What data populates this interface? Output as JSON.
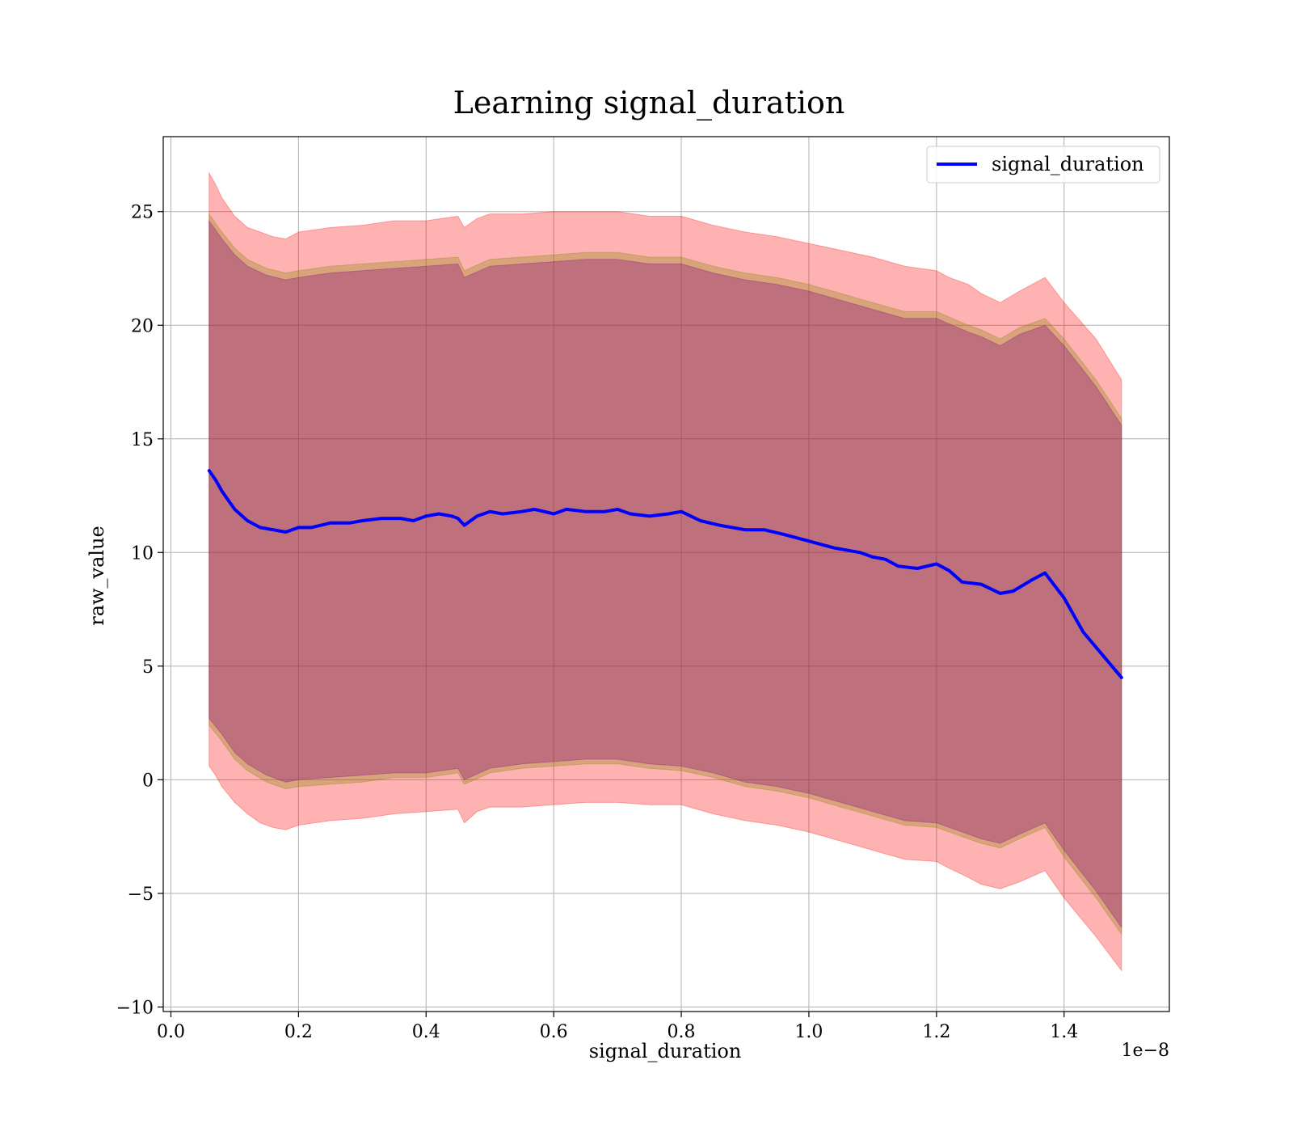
{
  "chart_data": {
    "type": "line",
    "title": "Learning signal_duration",
    "xlabel": "signal_duration",
    "ylabel": "raw_value",
    "x_offset_label": "1e−8",
    "xlim": [
      -0.012,
      1.565
    ],
    "ylim": [
      -10.2,
      28.3
    ],
    "x_ticks": [
      0.0,
      0.2,
      0.4,
      0.6,
      0.8,
      1.0,
      1.2,
      1.4
    ],
    "x_tick_labels": [
      "0.0",
      "0.2",
      "0.4",
      "0.6",
      "0.8",
      "1.0",
      "1.2",
      "1.4"
    ],
    "y_ticks": [
      -10,
      -5,
      0,
      5,
      10,
      15,
      20,
      25
    ],
    "y_tick_labels": [
      "−10",
      "−5",
      "0",
      "5",
      "10",
      "15",
      "20",
      "25"
    ],
    "grid": true,
    "legend_position": "top-right",
    "colors": {
      "line": "#0000ff",
      "outer_band": "#ff0000",
      "middle_band": "#808000",
      "inner_band": "#800080"
    },
    "series": [
      {
        "name": "signal_duration",
        "x": [
          0.06,
          0.07,
          0.08,
          0.09,
          0.1,
          0.12,
          0.14,
          0.16,
          0.18,
          0.2,
          0.22,
          0.25,
          0.28,
          0.3,
          0.33,
          0.36,
          0.38,
          0.4,
          0.42,
          0.44,
          0.45,
          0.46,
          0.48,
          0.5,
          0.52,
          0.55,
          0.57,
          0.6,
          0.62,
          0.65,
          0.68,
          0.7,
          0.72,
          0.75,
          0.78,
          0.8,
          0.83,
          0.86,
          0.9,
          0.93,
          0.96,
          1.0,
          1.04,
          1.08,
          1.1,
          1.12,
          1.14,
          1.17,
          1.2,
          1.22,
          1.24,
          1.27,
          1.3,
          1.32,
          1.35,
          1.37,
          1.4,
          1.43,
          1.46,
          1.49
        ],
        "y": [
          13.6,
          13.2,
          12.7,
          12.3,
          11.9,
          11.4,
          11.1,
          11.0,
          10.9,
          11.1,
          11.1,
          11.3,
          11.3,
          11.4,
          11.5,
          11.5,
          11.4,
          11.6,
          11.7,
          11.6,
          11.5,
          11.2,
          11.6,
          11.8,
          11.7,
          11.8,
          11.9,
          11.7,
          11.9,
          11.8,
          11.8,
          11.9,
          11.7,
          11.6,
          11.7,
          11.8,
          11.4,
          11.2,
          11.0,
          11.0,
          10.8,
          10.5,
          10.2,
          10.0,
          9.8,
          9.7,
          9.4,
          9.3,
          9.5,
          9.2,
          8.7,
          8.6,
          8.2,
          8.3,
          8.8,
          9.1,
          8.0,
          6.5,
          5.5,
          4.5
        ]
      }
    ],
    "bands": [
      {
        "color": "outer_band",
        "opacity": 0.3,
        "x": [
          0.06,
          0.07,
          0.08,
          0.1,
          0.12,
          0.14,
          0.16,
          0.18,
          0.2,
          0.25,
          0.3,
          0.35,
          0.4,
          0.45,
          0.46,
          0.48,
          0.5,
          0.55,
          0.6,
          0.65,
          0.7,
          0.75,
          0.8,
          0.85,
          0.9,
          0.95,
          1.0,
          1.05,
          1.1,
          1.15,
          1.2,
          1.22,
          1.25,
          1.27,
          1.3,
          1.33,
          1.37,
          1.4,
          1.45,
          1.49
        ],
        "lower": [
          0.6,
          0.2,
          -0.3,
          -1.0,
          -1.5,
          -1.9,
          -2.1,
          -2.2,
          -2.0,
          -1.8,
          -1.7,
          -1.5,
          -1.4,
          -1.3,
          -1.9,
          -1.4,
          -1.2,
          -1.2,
          -1.1,
          -1.0,
          -1.0,
          -1.1,
          -1.1,
          -1.5,
          -1.8,
          -2.0,
          -2.3,
          -2.7,
          -3.1,
          -3.5,
          -3.6,
          -3.9,
          -4.3,
          -4.6,
          -4.8,
          -4.5,
          -4.0,
          -5.2,
          -6.9,
          -8.4
        ],
        "upper": [
          26.7,
          26.2,
          25.6,
          24.8,
          24.3,
          24.1,
          23.9,
          23.8,
          24.1,
          24.3,
          24.4,
          24.6,
          24.6,
          24.8,
          24.3,
          24.7,
          24.9,
          24.9,
          25.0,
          25.0,
          25.0,
          24.8,
          24.8,
          24.4,
          24.1,
          23.9,
          23.6,
          23.3,
          23.0,
          22.6,
          22.4,
          22.1,
          21.8,
          21.4,
          21.0,
          21.5,
          22.1,
          21.0,
          19.4,
          17.6
        ]
      },
      {
        "color": "middle_band",
        "opacity": 0.3,
        "x": [
          0.06,
          0.08,
          0.1,
          0.12,
          0.15,
          0.18,
          0.2,
          0.25,
          0.3,
          0.35,
          0.4,
          0.45,
          0.46,
          0.5,
          0.55,
          0.6,
          0.65,
          0.7,
          0.75,
          0.8,
          0.85,
          0.9,
          0.95,
          1.0,
          1.05,
          1.1,
          1.15,
          1.2,
          1.25,
          1.27,
          1.3,
          1.33,
          1.37,
          1.4,
          1.45,
          1.49
        ],
        "lower": [
          2.4,
          1.7,
          0.9,
          0.4,
          -0.1,
          -0.4,
          -0.3,
          -0.2,
          -0.1,
          0.1,
          0.1,
          0.3,
          -0.2,
          0.3,
          0.5,
          0.6,
          0.7,
          0.7,
          0.5,
          0.4,
          0.1,
          -0.3,
          -0.5,
          -0.8,
          -1.2,
          -1.6,
          -2.0,
          -2.1,
          -2.6,
          -2.8,
          -3.0,
          -2.6,
          -2.1,
          -3.4,
          -5.2,
          -6.8
        ],
        "upper": [
          24.9,
          24.1,
          23.4,
          22.9,
          22.5,
          22.3,
          22.4,
          22.6,
          22.7,
          22.8,
          22.9,
          23.0,
          22.4,
          22.9,
          23.0,
          23.1,
          23.2,
          23.2,
          23.0,
          23.0,
          22.6,
          22.3,
          22.1,
          21.8,
          21.4,
          21.0,
          20.6,
          20.6,
          20.0,
          19.8,
          19.4,
          19.9,
          20.3,
          19.4,
          17.6,
          15.9
        ]
      },
      {
        "color": "inner_band",
        "opacity": 0.3,
        "x": [
          0.06,
          0.08,
          0.1,
          0.12,
          0.15,
          0.18,
          0.2,
          0.25,
          0.3,
          0.35,
          0.4,
          0.45,
          0.46,
          0.5,
          0.55,
          0.6,
          0.65,
          0.7,
          0.75,
          0.8,
          0.85,
          0.9,
          0.95,
          1.0,
          1.05,
          1.1,
          1.15,
          1.2,
          1.25,
          1.27,
          1.3,
          1.33,
          1.37,
          1.4,
          1.45,
          1.49
        ],
        "lower": [
          2.7,
          2.0,
          1.2,
          0.7,
          0.2,
          -0.1,
          0.0,
          0.1,
          0.2,
          0.3,
          0.3,
          0.5,
          0.0,
          0.5,
          0.7,
          0.8,
          0.9,
          0.9,
          0.7,
          0.6,
          0.3,
          -0.1,
          -0.3,
          -0.6,
          -1.0,
          -1.4,
          -1.8,
          -1.9,
          -2.4,
          -2.6,
          -2.8,
          -2.4,
          -1.9,
          -3.1,
          -4.9,
          -6.5
        ],
        "upper": [
          24.6,
          23.8,
          23.1,
          22.6,
          22.2,
          22.0,
          22.1,
          22.3,
          22.4,
          22.5,
          22.6,
          22.7,
          22.1,
          22.6,
          22.7,
          22.8,
          22.9,
          22.9,
          22.7,
          22.7,
          22.3,
          22.0,
          21.8,
          21.5,
          21.1,
          20.7,
          20.3,
          20.3,
          19.7,
          19.5,
          19.1,
          19.6,
          20.0,
          19.1,
          17.3,
          15.6
        ]
      }
    ]
  }
}
